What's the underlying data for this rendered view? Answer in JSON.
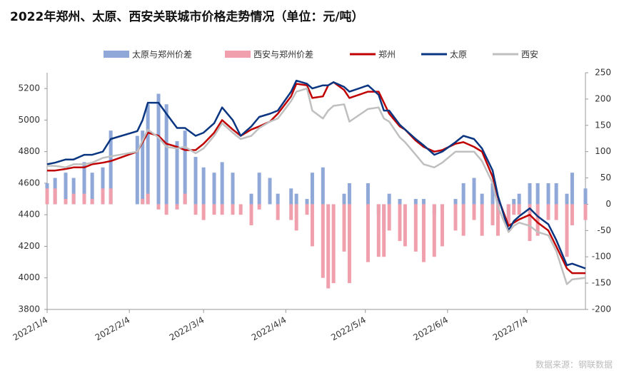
{
  "chart_data": {
    "type": "combo",
    "title": "2022年郑州、太原、西安关联城市价格走势情况（单位：元/吨）",
    "source": "数据来源：钢联数据",
    "x": [
      "2022/1/4",
      "2022/1/7",
      "2022/1/11",
      "2022/1/14",
      "2022/1/18",
      "2022/1/21",
      "2022/1/25",
      "2022/1/28",
      "2022/2/7",
      "2022/2/9",
      "2022/2/11",
      "2022/2/15",
      "2022/2/18",
      "2022/2/22",
      "2022/2/25",
      "2022/3/1",
      "2022/3/4",
      "2022/3/8",
      "2022/3/11",
      "2022/3/15",
      "2022/3/18",
      "2022/3/22",
      "2022/3/25",
      "2022/3/29",
      "2022/4/1",
      "2022/4/6",
      "2022/4/8",
      "2022/4/12",
      "2022/4/14",
      "2022/4/18",
      "2022/4/20",
      "2022/4/22",
      "2022/4/26",
      "2022/4/28",
      "2022/5/5",
      "2022/5/9",
      "2022/5/11",
      "2022/5/13",
      "2022/5/17",
      "2022/5/19",
      "2022/5/23",
      "2022/5/26",
      "2022/5/30",
      "2022/6/2",
      "2022/6/7",
      "2022/6/10",
      "2022/6/14",
      "2022/6/17",
      "2022/6/21",
      "2022/6/23",
      "2022/6/27",
      "2022/6/29",
      "2022/7/1",
      "2022/7/5",
      "2022/7/8",
      "2022/7/12",
      "2022/7/15",
      "2022/7/19",
      "2022/7/21",
      "2022/7/26"
    ],
    "series": [
      {
        "name": "太原与郑州价差",
        "type": "bar",
        "axis": "y2",
        "color": "#8fa8d8",
        "values": [
          40,
          50,
          60,
          50,
          80,
          60,
          70,
          140,
          130,
          140,
          190,
          210,
          190,
          120,
          140,
          90,
          70,
          60,
          80,
          60,
          0,
          20,
          60,
          50,
          20,
          30,
          20,
          10,
          60,
          70,
          0,
          0,
          20,
          40,
          40,
          -20,
          -50,
          20,
          10,
          0,
          10,
          10,
          -20,
          -10,
          10,
          40,
          50,
          20,
          40,
          10,
          -30,
          10,
          20,
          40,
          40,
          40,
          40,
          20,
          60,
          30
        ]
      },
      {
        "name": "西安与郑州价差",
        "type": "bar",
        "axis": "y2",
        "color": "#f0a0ac",
        "values": [
          30,
          30,
          10,
          20,
          20,
          10,
          30,
          30,
          0,
          10,
          20,
          -10,
          -20,
          -10,
          20,
          -20,
          -30,
          -20,
          -20,
          -20,
          -20,
          -40,
          -10,
          0,
          -30,
          -30,
          -50,
          -20,
          -80,
          -140,
          -160,
          -150,
          -90,
          -150,
          -110,
          -100,
          -100,
          -50,
          -70,
          -80,
          -90,
          -110,
          -100,
          -80,
          -50,
          -60,
          -30,
          -60,
          -40,
          -60,
          -40,
          -20,
          -20,
          -70,
          -60,
          -30,
          -30,
          -100,
          -40,
          -30
        ]
      },
      {
        "name": "郑州",
        "type": "line",
        "color": "#c00000",
        "values": [
          4680,
          4680,
          4690,
          4700,
          4700,
          4720,
          4730,
          4740,
          4800,
          4860,
          4920,
          4900,
          4850,
          4830,
          4810,
          4810,
          4850,
          4920,
          5000,
          4940,
          4900,
          4940,
          4960,
          4990,
          5040,
          5150,
          5230,
          5220,
          5140,
          5150,
          5220,
          5240,
          5190,
          5140,
          5180,
          5180,
          5110,
          5040,
          4960,
          4940,
          4870,
          4830,
          4800,
          4810,
          4850,
          4860,
          4830,
          4800,
          4640,
          4510,
          4330,
          4350,
          4370,
          4400,
          4350,
          4300,
          4200,
          4060,
          4030,
          4030
        ]
      },
      {
        "name": "太原",
        "type": "line",
        "color": "#0a3580",
        "values": [
          4720,
          4730,
          4750,
          4750,
          4780,
          4780,
          4800,
          4880,
          4930,
          5000,
          5110,
          5110,
          5040,
          4950,
          4950,
          4900,
          4920,
          4980,
          5080,
          5000,
          4900,
          4960,
          5020,
          5040,
          5060,
          5180,
          5250,
          5230,
          5200,
          5220,
          5220,
          5240,
          5210,
          5180,
          5220,
          5160,
          5060,
          5060,
          4970,
          4940,
          4880,
          4840,
          4780,
          4800,
          4860,
          4900,
          4880,
          4820,
          4680,
          4520,
          4300,
          4360,
          4390,
          4440,
          4390,
          4340,
          4240,
          4080,
          4090,
          4060
        ]
      },
      {
        "name": "西安",
        "type": "line",
        "color": "#bfbfbf",
        "values": [
          4710,
          4710,
          4700,
          4720,
          4720,
          4730,
          4760,
          4770,
          4800,
          4870,
          4940,
          4890,
          4830,
          4820,
          4830,
          4790,
          4820,
          4900,
          4980,
          4920,
          4880,
          4900,
          4950,
          4990,
          5010,
          5120,
          5180,
          5200,
          5060,
          5010,
          5060,
          5090,
          5100,
          4990,
          5070,
          5080,
          5010,
          4990,
          4890,
          4860,
          4780,
          4720,
          4700,
          4730,
          4800,
          4800,
          4800,
          4740,
          4600,
          4450,
          4290,
          4330,
          4350,
          4330,
          4290,
          4270,
          4170,
          3960,
          3990,
          4000
        ]
      }
    ],
    "xlim": [
      "2022/1/4",
      "2022/7/26"
    ],
    "xticks": [
      "2022/1/4",
      "2022/2/4",
      "2022/3/4",
      "2022/4/4",
      "2022/5/4",
      "2022/6/4",
      "2022/7/4"
    ],
    "ylim": [
      3800,
      5300
    ],
    "yticks": [
      3800,
      4000,
      4200,
      4400,
      4600,
      4800,
      5000,
      5200
    ],
    "y2lim": [
      -200,
      250
    ],
    "y2ticks": [
      -200,
      -150,
      -100,
      -50,
      0,
      50,
      100,
      150,
      200,
      250
    ],
    "legend": "top"
  }
}
